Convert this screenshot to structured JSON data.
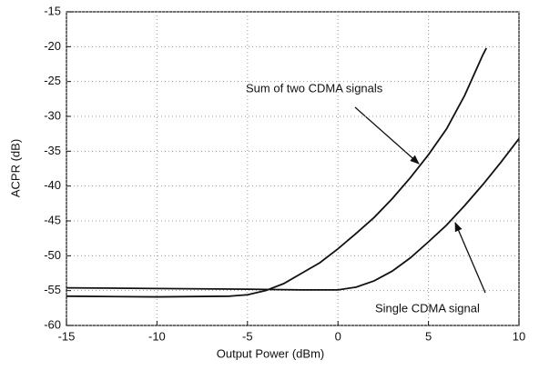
{
  "chart_data": {
    "type": "line",
    "xlabel": "Output Power (dBm)",
    "ylabel": "ACPR (dB)",
    "xlim": [
      -15,
      10
    ],
    "xticks": [
      -15,
      -10,
      -5,
      0,
      5,
      10
    ],
    "ylim": [
      -60,
      -15
    ],
    "yticks": [
      -60,
      -55,
      -50,
      -45,
      -40,
      -35,
      -30,
      -25,
      -20,
      -15
    ],
    "grid": true,
    "series": [
      {
        "name": "Sum of two CDMA signals",
        "color": "#111111",
        "x": [
          -15,
          -10,
          -6,
          -5,
          -4,
          -3,
          -2,
          -1,
          0,
          1,
          2,
          3,
          4,
          5,
          6,
          7,
          8,
          8.2
        ],
        "values": [
          -55.8,
          -55.9,
          -55.8,
          -55.6,
          -55,
          -54,
          -52.5,
          -51,
          -49,
          -46.8,
          -44.5,
          -41.8,
          -38.8,
          -35.5,
          -31.8,
          -27,
          -21.2,
          -20.2
        ]
      },
      {
        "name": "Single CDMA signal",
        "color": "#111111",
        "x": [
          -15,
          -10,
          -5,
          -2,
          0,
          1,
          2,
          3,
          4,
          5,
          6,
          7,
          8,
          9,
          10
        ],
        "values": [
          -54.6,
          -54.7,
          -54.8,
          -54.9,
          -54.9,
          -54.5,
          -53.6,
          -52.2,
          -50.3,
          -48,
          -45.6,
          -42.8,
          -39.8,
          -36.6,
          -33.2
        ]
      }
    ]
  }
}
